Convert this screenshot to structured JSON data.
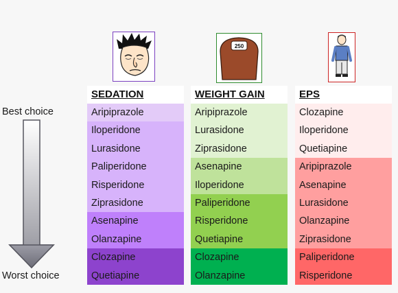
{
  "axis": {
    "best_label": "Best choice",
    "worst_label": "Worst choice"
  },
  "columns": [
    {
      "title": "SEDATION",
      "icon": "sleepy-face-icon",
      "rows": [
        {
          "drug": "Aripiprazole",
          "color": "#e3cbf8"
        },
        {
          "drug": "Iloperidone",
          "color": "#d7b3fb"
        },
        {
          "drug": "Lurasidone",
          "color": "#d7b3fb"
        },
        {
          "drug": "Paliperidone",
          "color": "#d7b3fb"
        },
        {
          "drug": "Risperidone",
          "color": "#d7b3fb"
        },
        {
          "drug": "Ziprasidone",
          "color": "#d7b3fb"
        },
        {
          "drug": "Asenapine",
          "color": "#bf80fb"
        },
        {
          "drug": "Olanzapine",
          "color": "#bf80fb"
        },
        {
          "drug": "Clozapine",
          "color": "#8d43cd"
        },
        {
          "drug": "Quetiapine",
          "color": "#8d43cd"
        }
      ]
    },
    {
      "title": "WEIGHT GAIN",
      "icon": "bathroom-scale-icon",
      "scale_reading": "250",
      "rows": [
        {
          "drug": "Aripiprazole",
          "color": "#e1f2d2"
        },
        {
          "drug": "Lurasidone",
          "color": "#e1f2d2"
        },
        {
          "drug": "Ziprasidone",
          "color": "#e1f2d2"
        },
        {
          "drug": "Asenapine",
          "color": "#bfe29b"
        },
        {
          "drug": "Iloperidone",
          "color": "#bfe29b"
        },
        {
          "drug": "Paliperidone",
          "color": "#92d050"
        },
        {
          "drug": "Risperidone",
          "color": "#92d050"
        },
        {
          "drug": "Quetiapine",
          "color": "#92d050"
        },
        {
          "drug": "Clozapine",
          "color": "#00b050"
        },
        {
          "drug": "Olanzapine",
          "color": "#00b050"
        }
      ]
    },
    {
      "title": "EPS",
      "icon": "stiff-person-icon",
      "rows": [
        {
          "drug": "Clozapine",
          "color": "#ffeded"
        },
        {
          "drug": "Iloperidone",
          "color": "#ffeded"
        },
        {
          "drug": "Quetiapine",
          "color": "#ffeded"
        },
        {
          "drug": "Aripiprazole",
          "color": "#ff9f9f"
        },
        {
          "drug": "Asenapine",
          "color": "#ff9f9f"
        },
        {
          "drug": "Lurasidone",
          "color": "#ff9f9f"
        },
        {
          "drug": "Olanzapine",
          "color": "#ff9f9f"
        },
        {
          "drug": "Ziprasidone",
          "color": "#ff9f9f"
        },
        {
          "drug": "Paliperidone",
          "color": "#ff6767"
        },
        {
          "drug": "Risperidone",
          "color": "#ff6767"
        }
      ]
    }
  ]
}
